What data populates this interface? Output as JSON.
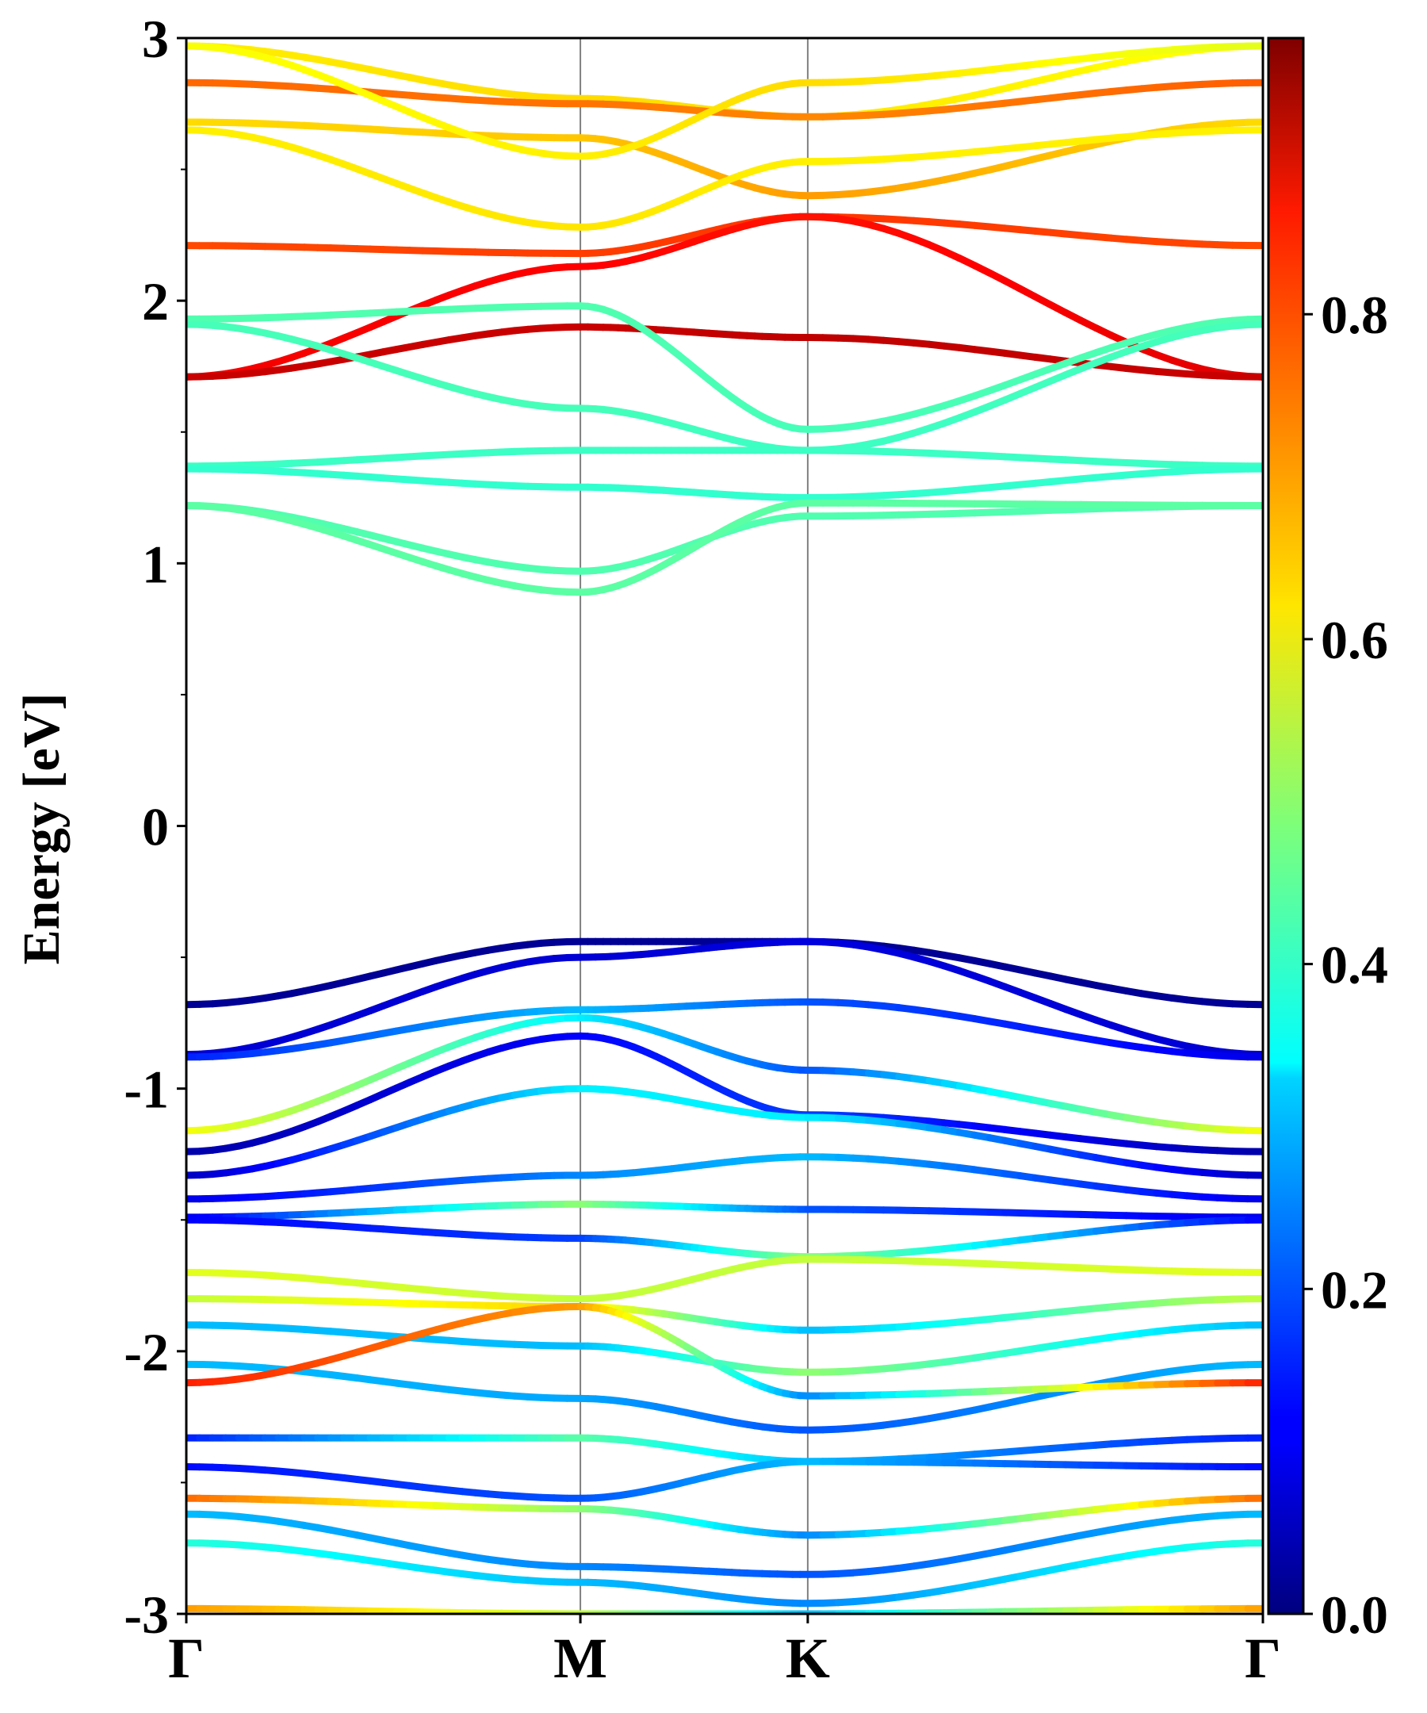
{
  "chart_data": {
    "type": "line",
    "subtype": "band-structure",
    "title": "",
    "xlabel": "",
    "ylabel": "Energy [eV]",
    "ylim": [
      -3,
      3
    ],
    "yticks": [
      -3,
      -2,
      -1,
      0,
      1,
      2,
      3
    ],
    "ytick_labels": [
      "-3",
      "-2",
      "-1",
      "0",
      "1",
      "2",
      "3"
    ],
    "high_symmetry_points": [
      {
        "label": "Γ",
        "k": 0.0
      },
      {
        "label": "M",
        "k": 1.0
      },
      {
        "label": "K",
        "k": 1.577
      },
      {
        "label": "Γ",
        "k": 2.732
      }
    ],
    "colorbar": {
      "colormap": "jet",
      "range": [
        0.0,
        0.97
      ],
      "ticks": [
        0.0,
        0.2,
        0.4,
        0.6,
        0.8
      ],
      "tick_labels": [
        "0.0",
        "0.2",
        "0.4",
        "0.6",
        "0.8"
      ]
    },
    "series": [
      {
        "x": [
          0,
          1,
          1.577,
          2.732
        ],
        "y": [
          2.97,
          2.77,
          2.7,
          2.97
        ],
        "c": [
          0.62,
          0.64,
          0.63,
          0.6
        ]
      },
      {
        "x": [
          0,
          1,
          1.577,
          2.732
        ],
        "y": [
          2.83,
          2.75,
          2.7,
          2.83
        ],
        "c": [
          0.75,
          0.74,
          0.72,
          0.76
        ]
      },
      {
        "x": [
          0,
          1,
          1.577,
          2.732
        ],
        "y": [
          2.68,
          2.62,
          2.4,
          2.68
        ],
        "c": [
          0.64,
          0.66,
          0.7,
          0.64
        ]
      },
      {
        "x": [
          0,
          1,
          1.577,
          2.732
        ],
        "y": [
          2.65,
          2.28,
          2.53,
          2.65
        ],
        "c": [
          0.62,
          0.63,
          0.62,
          0.62
        ]
      },
      {
        "x": [
          0,
          1,
          1.577,
          2.732
        ],
        "y": [
          2.97,
          2.55,
          2.83,
          2.97
        ],
        "c": [
          0.6,
          0.62,
          0.64,
          0.58
        ]
      },
      {
        "x": [
          0,
          1,
          1.577,
          2.732
        ],
        "y": [
          2.21,
          2.18,
          2.32,
          2.21
        ],
        "c": [
          0.78,
          0.79,
          0.8,
          0.78
        ]
      },
      {
        "x": [
          0,
          1,
          1.577,
          2.732
        ],
        "y": [
          1.71,
          2.13,
          2.32,
          1.71
        ],
        "c": [
          0.86,
          0.85,
          0.83,
          0.88
        ]
      },
      {
        "x": [
          0,
          1,
          1.577,
          2.732
        ],
        "y": [
          1.71,
          1.9,
          1.86,
          1.71
        ],
        "c": [
          0.9,
          0.9,
          0.91,
          0.9
        ]
      },
      {
        "x": [
          0,
          1,
          1.577,
          2.732
        ],
        "y": [
          1.93,
          1.98,
          1.51,
          1.93
        ],
        "c": [
          0.44,
          0.44,
          0.43,
          0.44
        ]
      },
      {
        "x": [
          0,
          1,
          1.577,
          2.732
        ],
        "y": [
          1.91,
          1.59,
          1.43,
          1.91
        ],
        "c": [
          0.43,
          0.43,
          0.42,
          0.43
        ]
      },
      {
        "x": [
          0,
          1,
          1.577,
          2.732
        ],
        "y": [
          1.37,
          1.43,
          1.43,
          1.37
        ],
        "c": [
          0.42,
          0.42,
          0.42,
          0.42
        ]
      },
      {
        "x": [
          0,
          1,
          1.577,
          2.732
        ],
        "y": [
          1.36,
          1.29,
          1.25,
          1.36
        ],
        "c": [
          0.41,
          0.41,
          0.41,
          0.41
        ]
      },
      {
        "x": [
          0,
          1,
          1.577,
          2.732
        ],
        "y": [
          1.22,
          0.97,
          1.18,
          1.22
        ],
        "c": [
          0.44,
          0.44,
          0.44,
          0.44
        ]
      },
      {
        "x": [
          0,
          1,
          1.577,
          2.732
        ],
        "y": [
          1.22,
          0.89,
          1.23,
          1.22
        ],
        "c": [
          0.45,
          0.45,
          0.45,
          0.45
        ]
      },
      {
        "x": [
          0,
          1,
          1.577,
          2.732
        ],
        "y": [
          -0.68,
          -0.44,
          -0.44,
          -0.68
        ],
        "c": [
          0.02,
          0.02,
          0.02,
          0.02
        ]
      },
      {
        "x": [
          0,
          1,
          1.577,
          2.732
        ],
        "y": [
          -0.87,
          -0.5,
          -0.44,
          -0.87
        ],
        "c": [
          0.08,
          0.08,
          0.09,
          0.08
        ]
      },
      {
        "x": [
          0,
          1,
          1.577,
          2.732
        ],
        "y": [
          -0.88,
          -0.7,
          -0.67,
          -0.88
        ],
        "c": [
          0.15,
          0.3,
          0.2,
          0.1
        ]
      },
      {
        "x": [
          0,
          1,
          1.577,
          2.732
        ],
        "y": [
          -1.16,
          -0.73,
          -0.93,
          -1.16
        ],
        "c": [
          0.6,
          0.35,
          0.2,
          0.6
        ]
      },
      {
        "x": [
          0,
          1,
          1.577,
          2.732
        ],
        "y": [
          -1.24,
          -0.8,
          -1.1,
          -1.24
        ],
        "c": [
          0.04,
          0.12,
          0.18,
          0.04
        ]
      },
      {
        "x": [
          0,
          1,
          1.577,
          2.732
        ],
        "y": [
          -1.33,
          -1.0,
          -1.11,
          -1.33
        ],
        "c": [
          0.06,
          0.35,
          0.35,
          0.06
        ]
      },
      {
        "x": [
          0,
          1,
          1.577,
          2.732
        ],
        "y": [
          -1.42,
          -1.33,
          -1.26,
          -1.42
        ],
        "c": [
          0.1,
          0.25,
          0.3,
          0.1
        ]
      },
      {
        "x": [
          0,
          1,
          1.577,
          2.732
        ],
        "y": [
          -1.49,
          -1.44,
          -1.46,
          -1.49
        ],
        "c": [
          0.1,
          0.5,
          0.2,
          0.1
        ]
      },
      {
        "x": [
          0,
          1,
          1.577,
          2.732
        ],
        "y": [
          -1.5,
          -1.57,
          -1.64,
          -1.5
        ],
        "c": [
          0.12,
          0.18,
          0.5,
          0.12
        ]
      },
      {
        "x": [
          0,
          1,
          1.577,
          2.732
        ],
        "y": [
          -1.7,
          -1.8,
          -1.65,
          -1.7
        ],
        "c": [
          0.58,
          0.55,
          0.55,
          0.58
        ]
      },
      {
        "x": [
          0,
          1,
          1.577,
          2.732
        ],
        "y": [
          -1.8,
          -1.83,
          -1.92,
          -1.8
        ],
        "c": [
          0.55,
          0.65,
          0.3,
          0.55
        ]
      },
      {
        "x": [
          0,
          1,
          1.577,
          2.732
        ],
        "y": [
          -1.9,
          -1.98,
          -2.08,
          -1.9
        ],
        "c": [
          0.3,
          0.3,
          0.5,
          0.3
        ]
      },
      {
        "x": [
          0,
          1,
          1.577,
          2.732
        ],
        "y": [
          -2.05,
          -2.18,
          -2.3,
          -2.05
        ],
        "c": [
          0.3,
          0.28,
          0.2,
          0.3
        ]
      },
      {
        "x": [
          0,
          1,
          1.577,
          2.732
        ],
        "y": [
          -2.12,
          -1.83,
          -2.17,
          -2.12
        ],
        "c": [
          0.82,
          0.7,
          0.25,
          0.82
        ]
      },
      {
        "x": [
          0,
          1,
          1.577,
          2.732
        ],
        "y": [
          -2.33,
          -2.33,
          -2.42,
          -2.33
        ],
        "c": [
          0.15,
          0.45,
          0.3,
          0.15
        ]
      },
      {
        "x": [
          0,
          1,
          1.577,
          2.732
        ],
        "y": [
          -2.44,
          -2.56,
          -2.42,
          -2.44
        ],
        "c": [
          0.13,
          0.2,
          0.3,
          0.13
        ]
      },
      {
        "x": [
          0,
          1,
          1.577,
          2.732
        ],
        "y": [
          -2.56,
          -2.6,
          -2.7,
          -2.56
        ],
        "c": [
          0.75,
          0.5,
          0.25,
          0.75
        ]
      },
      {
        "x": [
          0,
          1,
          1.577,
          2.732
        ],
        "y": [
          -2.62,
          -2.82,
          -2.85,
          -2.62
        ],
        "c": [
          0.3,
          0.25,
          0.2,
          0.3
        ]
      },
      {
        "x": [
          0,
          1,
          1.577,
          2.732
        ],
        "y": [
          -2.73,
          -2.88,
          -2.96,
          -2.73
        ],
        "c": [
          0.4,
          0.3,
          0.25,
          0.4
        ]
      },
      {
        "x": [
          0,
          1,
          1.577,
          2.732
        ],
        "y": [
          -2.98,
          -3.0,
          -3.0,
          -2.98
        ],
        "c": [
          0.7,
          0.55,
          0.3,
          0.7
        ]
      }
    ]
  }
}
